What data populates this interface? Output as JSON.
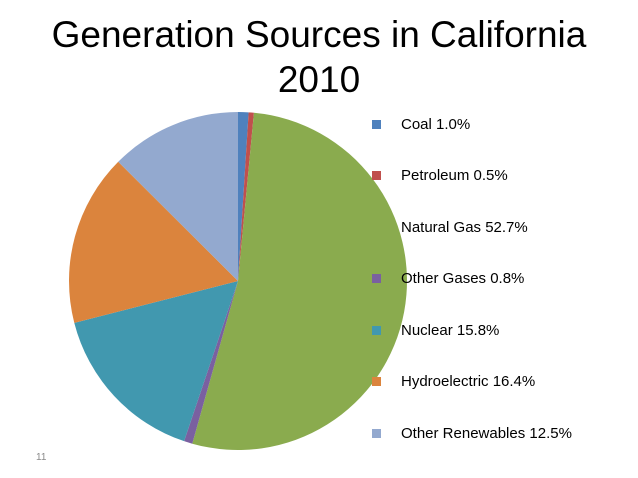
{
  "slide": {
    "title": "Generation Sources in California\n2010",
    "number": "11"
  },
  "chart_data": {
    "type": "pie",
    "title": "Generation Sources in California 2010",
    "unit": "%",
    "legend_position": "right",
    "start_angle": "12 o'clock, clockwise",
    "slices": [
      {
        "name": "Coal",
        "value": 1.0,
        "label": "Coal 1.0%",
        "color": "#4F81BD"
      },
      {
        "name": "Petroleum",
        "value": 0.5,
        "label": "Petroleum 0.5%",
        "color": "#C0504D"
      },
      {
        "name": "Natural Gas",
        "value": 52.7,
        "label": "Natural Gas 52.7%",
        "color": "#8AAB4E"
      },
      {
        "name": "Other Gases",
        "value": 0.8,
        "label": "Other Gases 0.8%",
        "color": "#7A60A0"
      },
      {
        "name": "Nuclear",
        "value": 15.8,
        "label": "Nuclear 15.8%",
        "color": "#4198AF"
      },
      {
        "name": "Hydroelectric",
        "value": 16.4,
        "label": "Hydroelectric 16.4%",
        "color": "#DB843D"
      },
      {
        "name": "Other Renewables",
        "value": 12.5,
        "label": "Other Renewables 12.5%",
        "color": "#93A9CF"
      }
    ]
  }
}
